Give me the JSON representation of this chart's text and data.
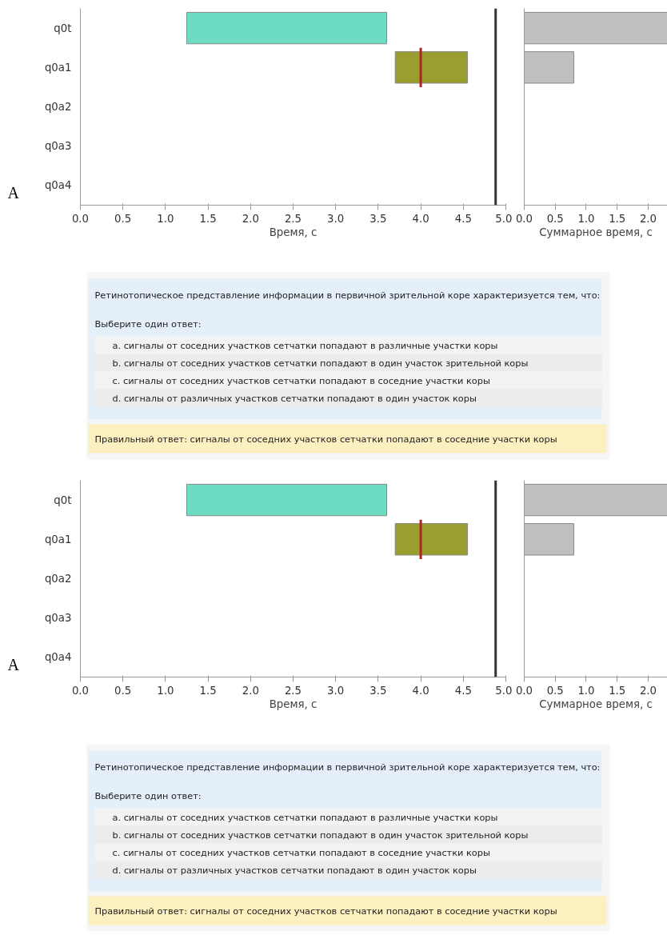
{
  "chart_data": [
    {
      "type": "bar",
      "orientation": "horizontal",
      "categories": [
        "q0t",
        "q0a1",
        "q0a2",
        "q0a3",
        "q0a4"
      ],
      "xlabel": "Время, с",
      "annotations": [
        "A"
      ],
      "series": [
        {
          "values": [
            2.35,
            0.85,
            null,
            null,
            null
          ],
          "base": [
            1.25,
            3.7,
            null,
            null,
            null
          ],
          "colors": [
            "#6ddcc2",
            "#999e2f",
            null,
            null,
            null
          ]
        }
      ],
      "ref_lines": [
        {
          "axis": "x",
          "value": 4.88,
          "label": null,
          "color": "#333333"
        },
        {
          "axis": "x",
          "value": 4.0,
          "label": null,
          "color": "#b22222"
        }
      ],
      "xlim": [
        0,
        5
      ],
      "xticks": [
        {
          "value": 0,
          "label": "0.0"
        },
        0.5,
        {
          "value": 1,
          "label": "1.0"
        },
        1.5,
        {
          "value": 2,
          "label": "2.0"
        },
        2.5,
        {
          "value": 3,
          "label": "3.0"
        },
        3.5,
        {
          "value": 4,
          "label": "4.0"
        },
        4.5,
        {
          "value": 5,
          "label": "5.0"
        }
      ],
      "grid": false
    },
    {
      "type": "bar",
      "orientation": "horizontal",
      "categories": [
        null,
        null,
        null,
        null,
        null
      ],
      "xlabel": "Суммарное время, с",
      "tick_labels": "x",
      "series": [
        {
          "color": "#c0c0c0",
          "values": [
            2.31,
            0.8,
            null,
            null,
            null
          ]
        }
      ],
      "xlim": [
        0,
        2.31
      ],
      "xticks": [
        {
          "value": 0,
          "label": "0.0"
        },
        0.5,
        {
          "value": 1,
          "label": "1.0"
        },
        1.5,
        {
          "value": 2,
          "label": "2.0"
        }
      ],
      "grid": false
    },
    {
      "type": "other",
      "title": "Ретинотопическое представление информации в первичной зрительной коре характеризуется тем, что:",
      "subtitle": "Выберите один ответ:",
      "annotations": [
        "a. сигналы от соседних участков сетчатки попадают в различные участки коры",
        "b. сигналы от соседних участков сетчатки попадают в один участок зрительной коры",
        "c. сигналы от соседних участков сетчатки попадают в соседние участки коры",
        "d. сигналы от различных участков сетчатки попадают в один участок коры",
        "Правильный ответ: сигналы от соседних участков сетчатки попадают в соседние участки коры"
      ]
    },
    {
      "type": "bar",
      "orientation": "horizontal",
      "categories": [
        "q0t",
        "q0a1",
        "q0a2",
        "q0a3",
        "q0a4"
      ],
      "xlabel": "Время, с",
      "annotations": [
        "A"
      ],
      "series": [
        {
          "values": [
            2.35,
            0.85,
            null,
            null,
            null
          ],
          "base": [
            1.25,
            3.7,
            null,
            null,
            null
          ],
          "colors": [
            "#6ddcc2",
            "#999e2f",
            null,
            null,
            null
          ]
        }
      ],
      "ref_lines": [
        {
          "axis": "x",
          "value": 4.88,
          "label": null,
          "color": "#333333"
        },
        {
          "axis": "x",
          "value": 4.0,
          "label": null,
          "color": "#b22222"
        }
      ],
      "xlim": [
        0,
        5
      ],
      "xticks": [
        {
          "value": 0,
          "label": "0.0"
        },
        0.5,
        {
          "value": 1,
          "label": "1.0"
        },
        1.5,
        {
          "value": 2,
          "label": "2.0"
        },
        2.5,
        {
          "value": 3,
          "label": "3.0"
        },
        3.5,
        {
          "value": 4,
          "label": "4.0"
        },
        4.5,
        {
          "value": 5,
          "label": "5.0"
        }
      ],
      "grid": false
    },
    {
      "type": "bar",
      "orientation": "horizontal",
      "categories": [
        null,
        null,
        null,
        null,
        null
      ],
      "xlabel": "Суммарное время, с",
      "tick_labels": "x",
      "series": [
        {
          "color": "#c0c0c0",
          "values": [
            2.31,
            0.8,
            null,
            null,
            null
          ]
        }
      ],
      "xlim": [
        0,
        2.31
      ],
      "xticks": [
        {
          "value": 0,
          "label": "0.0"
        },
        0.5,
        {
          "value": 1,
          "label": "1.0"
        },
        1.5,
        {
          "value": 2,
          "label": "2.0"
        }
      ],
      "grid": false
    },
    {
      "type": "other",
      "title": "Ретинотопическое представление информации в первичной зрительной коре характеризуется тем, что:",
      "subtitle": "Выберите один ответ:",
      "annotations": [
        "a. сигналы от соседних участков сетчатки попадают в различные участки коры",
        "b. сигналы от соседних участков сетчатки попадают в один участок зрительной коры",
        "c. сигналы от соседних участков сетчатки попадают в соседние участки коры",
        "d. сигналы от различных участков сетчатки попадают в один участок коры",
        "Правильный ответ: сигналы от соседних участков сетчатки попадают в соседние участки коры"
      ]
    }
  ]
}
